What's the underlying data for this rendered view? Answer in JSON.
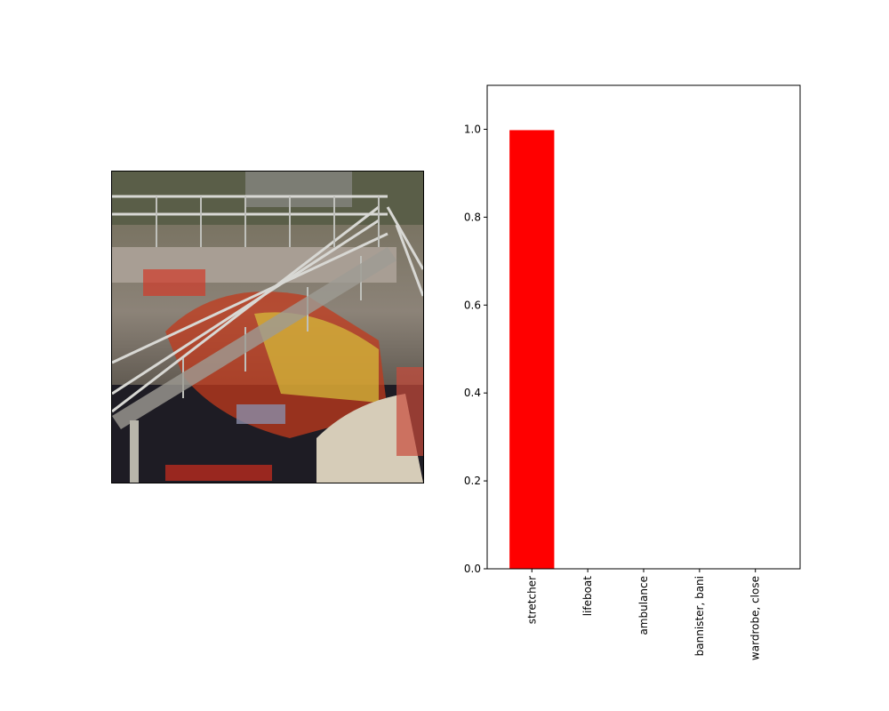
{
  "image_panel": {
    "content": "composite photo: metal staircase with railings overlaid with a red and yellow rescue vehicle"
  },
  "chart_data": {
    "type": "bar",
    "categories": [
      "stretcher",
      "lifeboat",
      "ambulance",
      "bannister, bani",
      "wardrobe, close"
    ],
    "values": [
      0.998,
      0.001,
      0.0005,
      0.0003,
      0.0002
    ],
    "title": "",
    "xlabel": "",
    "ylabel": "",
    "ylim": [
      0,
      1.1
    ],
    "yticks": [
      "0.0",
      "0.2",
      "0.4",
      "0.6",
      "0.8",
      "1.0"
    ],
    "bar_color": "#ff0000",
    "grid": false,
    "legend": "none"
  }
}
